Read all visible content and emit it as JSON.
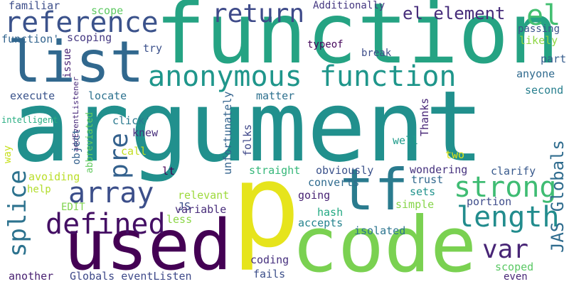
{
  "words": [
    {
      "text": "argument",
      "color": "#21908d"
    },
    {
      "text": "function",
      "color": "#25a383"
    },
    {
      "text": "p",
      "color": "#e6e41c"
    },
    {
      "text": "code",
      "color": "#7ad151"
    },
    {
      "text": "used",
      "color": "#440154"
    },
    {
      "text": "list",
      "color": "#31688e"
    },
    {
      "text": "tf",
      "color": "#2a7b8e"
    },
    {
      "text": "anonymous function",
      "color": "#1f968b"
    },
    {
      "text": "reference",
      "color": "#3b528b"
    },
    {
      "text": "return",
      "color": "#3e4a89"
    },
    {
      "text": "el element",
      "color": "#472d7b"
    },
    {
      "text": "el",
      "color": "#43bf71"
    },
    {
      "text": "array",
      "color": "#3c4f8a"
    },
    {
      "text": "pre",
      "color": "#34618d"
    },
    {
      "text": "strong",
      "color": "#3fbc73"
    },
    {
      "text": "length",
      "color": "#228c8d"
    },
    {
      "text": "defined",
      "color": "#440f64"
    },
    {
      "text": "var",
      "color": "#482576"
    },
    {
      "text": "splice",
      "color": "#2c728e"
    },
    {
      "text": "JAS Globals",
      "color": "#2f6c8e"
    },
    {
      "text": "familiar",
      "color": "#3d4e8a"
    },
    {
      "text": "scope",
      "color": "#5ec962"
    },
    {
      "text": "Additionally",
      "color": "#453781"
    },
    {
      "text": "function'",
      "color": "#32648e"
    },
    {
      "text": "scoping",
      "color": "#453882"
    },
    {
      "text": "EDIT",
      "color": "#7fd34e"
    },
    {
      "text": "passing",
      "color": "#3a548c"
    },
    {
      "text": "likely",
      "color": "#8fd744"
    },
    {
      "text": "try",
      "color": "#3b518b"
    },
    {
      "text": "typeof",
      "color": "#46085c"
    },
    {
      "text": "break",
      "color": "#3d4d8a"
    },
    {
      "text": "part",
      "color": "#365d8d"
    },
    {
      "text": "anyone",
      "color": "#306a8e"
    },
    {
      "text": "second",
      "color": "#277f8e"
    },
    {
      "text": "issue",
      "color": "#482173"
    },
    {
      "text": "execute",
      "color": "#3a538b"
    },
    {
      "text": "locate",
      "color": "#2c718e"
    },
    {
      "text": "matter",
      "color": "#2d708e"
    },
    {
      "text": "Thanks",
      "color": "#482677"
    },
    {
      "text": "unfortunately",
      "color": "#33638d"
    },
    {
      "text": "addEventListener",
      "color": "#482979"
    },
    {
      "text": "intelligent",
      "color": "#26ad81"
    },
    {
      "text": "click'",
      "color": "#2a788e"
    },
    {
      "text": "knew",
      "color": "#472e7c"
    },
    {
      "text": "folks",
      "color": "#3f4889"
    },
    {
      "text": "abbreviated",
      "color": "#63cb5f"
    },
    {
      "text": "object",
      "color": "#34618d"
    },
    {
      "text": "call",
      "color": "#c2df23"
    },
    {
      "text": "well",
      "color": "#1e9b8a"
    },
    {
      "text": "two",
      "color": "#dde318"
    },
    {
      "text": "way",
      "color": "#c8e020"
    },
    {
      "text": "lt",
      "color": "#440154"
    },
    {
      "text": "clarify",
      "color": "#38598c"
    },
    {
      "text": "avoiding",
      "color": "#bade28"
    },
    {
      "text": "straight",
      "color": "#35b779"
    },
    {
      "text": "obviously",
      "color": "#3b528b"
    },
    {
      "text": "wondering",
      "color": "#46327e"
    },
    {
      "text": "help",
      "color": "#b2dd2d"
    },
    {
      "text": "relevant",
      "color": "#9dd93b"
    },
    {
      "text": "converts",
      "color": "#2f6b8e"
    },
    {
      "text": "trust",
      "color": "#31688e"
    },
    {
      "text": "JS",
      "color": "#3c4f8a"
    },
    {
      "text": "variable",
      "color": "#472c7a"
    },
    {
      "text": "going",
      "color": "#482374"
    },
    {
      "text": "sets",
      "color": "#20928c"
    },
    {
      "text": "portion",
      "color": "#3e4c8a"
    },
    {
      "text": "less",
      "color": "#8bd646"
    },
    {
      "text": "hash",
      "color": "#23a983"
    },
    {
      "text": "simple",
      "color": "#86d549"
    },
    {
      "text": "accepts",
      "color": "#25838e"
    },
    {
      "text": "isolated",
      "color": "#2b748e"
    },
    {
      "text": "coding",
      "color": "#46307e"
    },
    {
      "text": "fails",
      "color": "#3c4f8a"
    },
    {
      "text": "scoped",
      "color": "#5ac864"
    },
    {
      "text": "even",
      "color": "#482677"
    },
    {
      "text": "another",
      "color": "#482071"
    },
    {
      "text": "Globals eventListen",
      "color": "#3e4989"
    }
  ]
}
